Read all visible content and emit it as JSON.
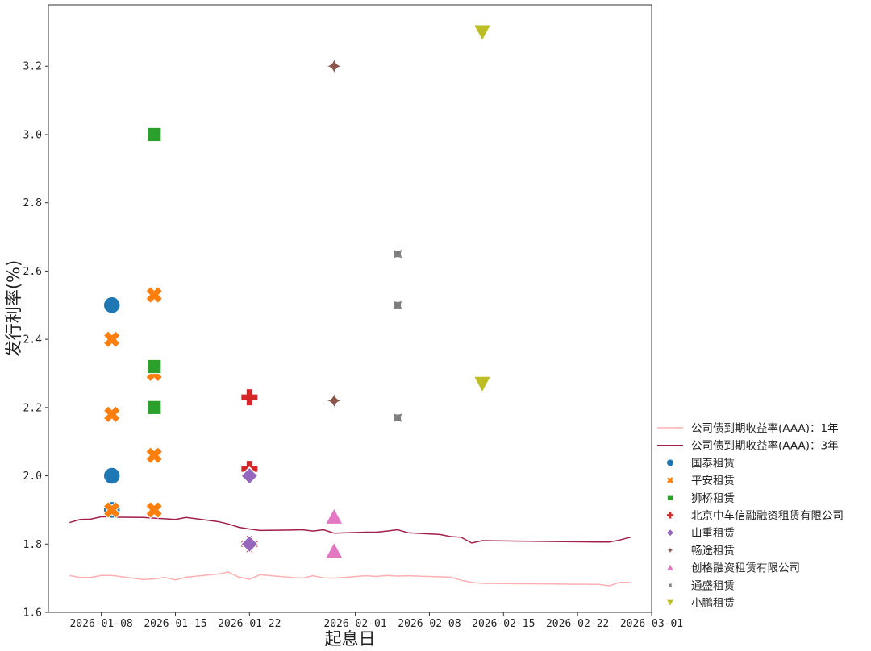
{
  "chart_data": {
    "type": "scatter",
    "xlabel": "起息日",
    "ylabel": "发行利率(%)",
    "xlim": [
      "2026-01-03",
      "2026-03-01"
    ],
    "ylim": [
      1.6,
      3.38
    ],
    "x_ticks": [
      "2026-01-08",
      "2026-01-15",
      "2026-01-22",
      "2026-02-01",
      "2026-02-08",
      "2026-02-15",
      "2026-02-22",
      "2026-03-01"
    ],
    "y_ticks": [
      "1.6",
      "1.8",
      "2.0",
      "2.2",
      "2.4",
      "2.6",
      "2.8",
      "3.0",
      "3.2"
    ],
    "grid": false,
    "legend_position": "right",
    "lines": [
      {
        "name": "公司债到期收益率(AAA)：1年",
        "color": "#ffb0b0",
        "points": [
          [
            "2026-01-05",
            1.708
          ],
          [
            "2026-01-06",
            1.702
          ],
          [
            "2026-01-07",
            1.702
          ],
          [
            "2026-01-08",
            1.708
          ],
          [
            "2026-01-09",
            1.708
          ],
          [
            "2026-01-12",
            1.696
          ],
          [
            "2026-01-13",
            1.698
          ],
          [
            "2026-01-14",
            1.702
          ],
          [
            "2026-01-15",
            1.695
          ],
          [
            "2026-01-16",
            1.703
          ],
          [
            "2026-01-19",
            1.712
          ],
          [
            "2026-01-20",
            1.718
          ],
          [
            "2026-01-21",
            1.703
          ],
          [
            "2026-01-22",
            1.697
          ],
          [
            "2026-01-23",
            1.71
          ],
          [
            "2026-01-26",
            1.702
          ],
          [
            "2026-01-27",
            1.7
          ],
          [
            "2026-01-28",
            1.707
          ],
          [
            "2026-01-29",
            1.701
          ],
          [
            "2026-01-30",
            1.7
          ],
          [
            "2026-02-02",
            1.707
          ],
          [
            "2026-02-03",
            1.705
          ],
          [
            "2026-02-04",
            1.708
          ],
          [
            "2026-02-05",
            1.706
          ],
          [
            "2026-02-06",
            1.707
          ],
          [
            "2026-02-09",
            1.704
          ],
          [
            "2026-02-10",
            1.703
          ],
          [
            "2026-02-11",
            1.694
          ],
          [
            "2026-02-12",
            1.688
          ],
          [
            "2026-02-13",
            1.685
          ],
          [
            "2026-02-24",
            1.682
          ],
          [
            "2026-02-25",
            1.678
          ],
          [
            "2026-02-26",
            1.688
          ],
          [
            "2026-02-27",
            1.688
          ]
        ]
      },
      {
        "name": "公司债到期收益率(AAA)：3年",
        "color": "#a0204a",
        "points": [
          [
            "2026-01-05",
            1.863
          ],
          [
            "2026-01-06",
            1.872
          ],
          [
            "2026-01-07",
            1.873
          ],
          [
            "2026-01-08",
            1.88
          ],
          [
            "2026-01-09",
            1.879
          ],
          [
            "2026-01-12",
            1.878
          ],
          [
            "2026-01-13",
            1.876
          ],
          [
            "2026-01-14",
            1.874
          ],
          [
            "2026-01-15",
            1.872
          ],
          [
            "2026-01-16",
            1.878
          ],
          [
            "2026-01-19",
            1.866
          ],
          [
            "2026-01-20",
            1.859
          ],
          [
            "2026-01-21",
            1.849
          ],
          [
            "2026-01-22",
            1.844
          ],
          [
            "2026-01-23",
            1.84
          ],
          [
            "2026-01-26",
            1.841
          ],
          [
            "2026-01-27",
            1.842
          ],
          [
            "2026-01-28",
            1.838
          ],
          [
            "2026-01-29",
            1.842
          ],
          [
            "2026-01-30",
            1.832
          ],
          [
            "2026-02-02",
            1.835
          ],
          [
            "2026-02-03",
            1.835
          ],
          [
            "2026-02-04",
            1.838
          ],
          [
            "2026-02-05",
            1.842
          ],
          [
            "2026-02-06",
            1.833
          ],
          [
            "2026-02-09",
            1.828
          ],
          [
            "2026-02-10",
            1.822
          ],
          [
            "2026-02-11",
            1.82
          ],
          [
            "2026-02-12",
            1.803
          ],
          [
            "2026-02-13",
            1.81
          ],
          [
            "2026-02-24",
            1.806
          ],
          [
            "2026-02-25",
            1.806
          ],
          [
            "2026-02-26",
            1.812
          ],
          [
            "2026-02-27",
            1.82
          ]
        ]
      }
    ],
    "series": [
      {
        "name": "国泰租赁",
        "color": "#1f77b4",
        "marker": "circle",
        "points": [
          [
            "2026-01-09",
            2.5
          ],
          [
            "2026-01-09",
            2.0
          ],
          [
            "2026-01-09",
            1.9
          ]
        ]
      },
      {
        "name": "平安租赁",
        "color": "#ff7f0e",
        "marker": "x",
        "points": [
          [
            "2026-01-09",
            2.4
          ],
          [
            "2026-01-09",
            2.18
          ],
          [
            "2026-01-09",
            1.9
          ],
          [
            "2026-01-13",
            2.53
          ],
          [
            "2026-01-13",
            2.3
          ],
          [
            "2026-01-13",
            2.06
          ],
          [
            "2026-01-13",
            1.9
          ]
        ]
      },
      {
        "name": "狮桥租赁",
        "color": "#2ca02c",
        "marker": "square",
        "points": [
          [
            "2026-01-13",
            3.0
          ],
          [
            "2026-01-13",
            2.32
          ],
          [
            "2026-01-13",
            2.2
          ]
        ]
      },
      {
        "name": "北京中车信融融资租赁有限公司",
        "color": "#d62728",
        "marker": "plus",
        "points": [
          [
            "2026-01-22",
            2.23
          ],
          [
            "2026-01-22",
            2.02
          ],
          [
            "2026-01-22",
            1.8
          ]
        ]
      },
      {
        "name": "山重租赁",
        "color": "#9467bd",
        "marker": "diamond",
        "points": [
          [
            "2026-01-22",
            2.0
          ],
          [
            "2026-01-22",
            1.8
          ]
        ]
      },
      {
        "name": "畅途租赁",
        "color": "#8c564b",
        "marker": "star4",
        "points": [
          [
            "2026-01-30",
            3.2
          ],
          [
            "2026-01-30",
            2.22
          ]
        ]
      },
      {
        "name": "创格融资租赁有限公司",
        "color": "#e377c2",
        "marker": "triangle-up",
        "points": [
          [
            "2026-01-30",
            1.88
          ],
          [
            "2026-01-30",
            1.78
          ]
        ]
      },
      {
        "name": "通盛租赁",
        "color": "#7f7f7f",
        "marker": "star4-x",
        "points": [
          [
            "2026-02-05",
            2.65
          ],
          [
            "2026-02-05",
            2.5
          ],
          [
            "2026-02-05",
            2.17
          ]
        ]
      },
      {
        "name": "小鹏租赁",
        "color": "#bcbd22",
        "marker": "triangle-down",
        "points": [
          [
            "2026-02-13",
            3.3
          ],
          [
            "2026-02-13",
            2.27
          ]
        ]
      }
    ]
  }
}
